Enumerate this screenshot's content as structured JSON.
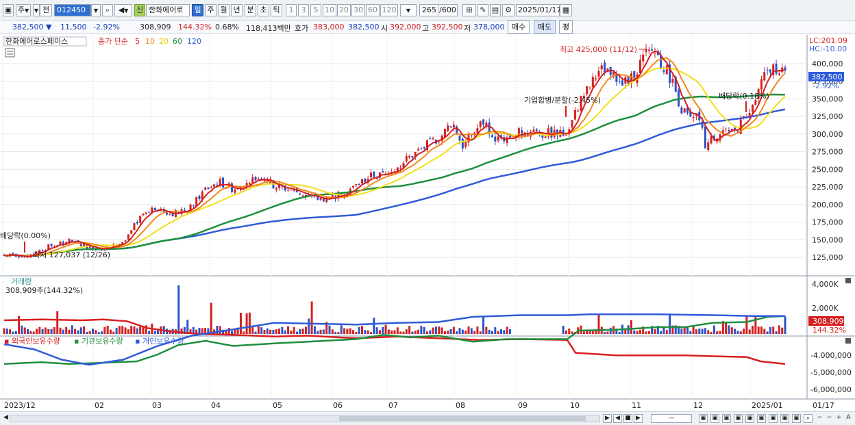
{
  "toolbar": {
    "market_type": "주",
    "prev_label": "전",
    "stock_code": "012450",
    "stock_name": "한화에어로",
    "new_badge": "신",
    "periods": [
      "일",
      "주",
      "월",
      "년",
      "분",
      "초",
      "틱"
    ],
    "active_period": "일",
    "intervals": [
      "1",
      "3",
      "5",
      "10",
      "20",
      "30",
      "60",
      "120"
    ],
    "count_display": "265",
    "count_total": "/600",
    "date": "2025/01/17"
  },
  "quote": {
    "price": "382,500",
    "change_arrow": "▼",
    "change": "11,500",
    "change_rate": "-2.92%",
    "volume": "308,909",
    "volume_ratio": "144.32%",
    "turnover": "0.68%",
    "amount": "118,413백만",
    "bid_label": "호가",
    "bid": "383,000",
    "ask": "382,500",
    "open_label": "시",
    "open": "392,000",
    "high_label": "고",
    "high": "392,500",
    "low_label": "저",
    "low": "378,000",
    "buy_label": "매수",
    "sell_label": "매도",
    "avg_label": "평"
  },
  "price_panel": {
    "title": "한화에어로스페이스",
    "ma_label": "종가 단순",
    "ma_periods": [
      "5",
      "10",
      "20",
      "60",
      "120"
    ],
    "lc_label": "LC:201.09",
    "hc_label": "HC:-10.00",
    "current_price_tag": "382,500",
    "current_rate_tag": "-2.92%",
    "y_ticks": [
      "400,000",
      "375,000",
      "350,000",
      "325,000",
      "300,000",
      "275,000",
      "250,000",
      "225,000",
      "200,000",
      "175,000",
      "150,000",
      "125,000"
    ],
    "annotations": {
      "high": "최고 425,000 (11/12)",
      "low": "최저 127,037 (12/26)",
      "ex_div_left": "배당락(0.00%)",
      "merger": "기업합병/분할(-2.45%)",
      "ex_div_right": "배당락(0.18%)"
    },
    "colors": {
      "ma5": "#d81e1e",
      "ma10": "#f08a1a",
      "ma20": "#f2df17",
      "ma60": "#1e8f3e",
      "ma120": "#2f5bd8",
      "up": "#d42020",
      "down": "#2a52c9"
    }
  },
  "volume_panel": {
    "title": "거래량",
    "value_label": "308,909주(144.32%)",
    "y_ticks": [
      "4,000K",
      "2,000K"
    ],
    "current_tag": "308,909",
    "current_rate_tag": "144.32%"
  },
  "holdings_panel": {
    "legend": [
      "외국인보유수량",
      "기관보유수량",
      "개인보유수량"
    ],
    "y_ticks": [
      "-4,000,000",
      "-5,000,000",
      "-6,000,000"
    ],
    "colors": {
      "foreign": "#d81e1e",
      "institution": "#1e8f3e",
      "individual": "#2f5bd8"
    }
  },
  "x_axis": {
    "labels": [
      "2023/12",
      "02",
      "03",
      "04",
      "05",
      "06",
      "07",
      "08",
      "09",
      "10",
      "11",
      "12",
      "2025/01"
    ],
    "right_label": "01/17"
  }
}
